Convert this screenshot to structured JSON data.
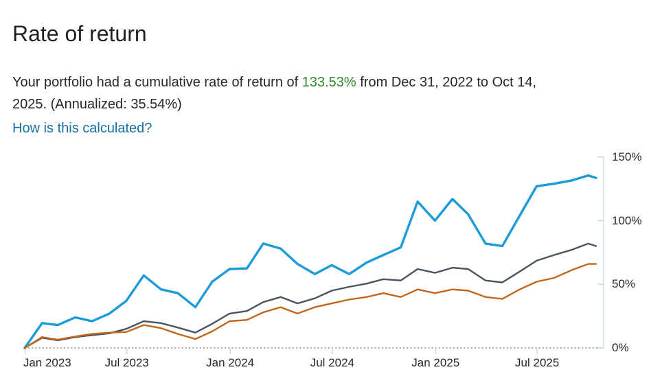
{
  "header": {
    "title": "Rate of return"
  },
  "summary": {
    "prefix": "Your portfolio had a cumulative rate of return of ",
    "return_value": "133.53%",
    "after_value_line1": " from Dec 31, 2022 to Oct 14,",
    "line2": "2025. (Annualized: 35.54%)"
  },
  "links": {
    "how_calculated": "How is this calculated?"
  },
  "colors": {
    "positive_green": "#2f8a2c",
    "link_blue": "#14709f",
    "axis_line": "#c9d6e3",
    "zero_baseline_dots": "#8d949b",
    "portfolio_blue": "#1b9bd7",
    "benchmark_gray": "#49545f",
    "benchmark_orange": "#c2661c"
  },
  "chart_data": {
    "type": "line",
    "title": "",
    "xlabel": "",
    "ylabel": "",
    "ylim": [
      0,
      150
    ],
    "y_axis_side": "right",
    "grid": false,
    "legend": "none",
    "zero_baseline_style": "dotted",
    "x_range": [
      "2022-12-31",
      "2025-10-14"
    ],
    "x_ticks": [
      {
        "label": "Jan 2023",
        "date": "2023-01-01"
      },
      {
        "label": "Jul 2023",
        "date": "2023-07-01"
      },
      {
        "label": "Jan 2024",
        "date": "2024-01-01"
      },
      {
        "label": "Jul 2024",
        "date": "2024-07-01"
      },
      {
        "label": "Jan 2025",
        "date": "2025-01-01"
      },
      {
        "label": "Jul 2025",
        "date": "2025-07-01"
      }
    ],
    "y_ticks": [
      {
        "label": "0%",
        "value": 0
      },
      {
        "label": "50%",
        "value": 50
      },
      {
        "label": "100%",
        "value": 100
      },
      {
        "label": "150%",
        "value": 150
      }
    ],
    "dates": [
      "2022-12-31",
      "2023-01-31",
      "2023-02-28",
      "2023-03-31",
      "2023-04-30",
      "2023-05-31",
      "2023-06-30",
      "2023-07-31",
      "2023-08-31",
      "2023-09-30",
      "2023-10-31",
      "2023-11-30",
      "2023-12-31",
      "2024-01-31",
      "2024-02-29",
      "2024-03-31",
      "2024-04-30",
      "2024-05-31",
      "2024-06-30",
      "2024-07-31",
      "2024-08-31",
      "2024-09-30",
      "2024-10-31",
      "2024-11-30",
      "2024-12-31",
      "2025-01-31",
      "2025-02-28",
      "2025-03-31",
      "2025-04-30",
      "2025-05-31",
      "2025-06-30",
      "2025-07-31",
      "2025-08-31",
      "2025-09-30",
      "2025-10-14"
    ],
    "series": [
      {
        "id": "portfolio-blue",
        "color": "#1b9bd7",
        "stroke_width": 3.4,
        "values": [
          0,
          19.5,
          18,
          24,
          21,
          27,
          37,
          57,
          46,
          43,
          32,
          52,
          62,
          62.5,
          82,
          78,
          66,
          58,
          65,
          58,
          67,
          73,
          79,
          115,
          100,
          117,
          105,
          82,
          80,
          104,
          127,
          129,
          131.5,
          135.5,
          133.53
        ]
      },
      {
        "id": "benchmark-gray",
        "color": "#49545f",
        "stroke_width": 2.4,
        "values": [
          0,
          8,
          6,
          8.5,
          10,
          11.5,
          15,
          21,
          19.5,
          16,
          12,
          19,
          27,
          29,
          36,
          40,
          35,
          39,
          45,
          48,
          50.5,
          54,
          53,
          62,
          59,
          63,
          62,
          53,
          51.5,
          60,
          68.5,
          73,
          77,
          82,
          80
        ]
      },
      {
        "id": "benchmark-orange",
        "color": "#c2661c",
        "stroke_width": 2.4,
        "values": [
          0,
          8.5,
          6.5,
          9,
          11,
          12,
          12.5,
          18,
          15.5,
          11,
          7,
          13,
          21,
          22,
          28,
          32,
          27,
          32,
          35,
          38,
          40,
          43,
          40,
          46,
          43,
          46,
          45,
          40,
          38.5,
          46,
          52,
          55,
          61,
          66,
          66
        ]
      }
    ]
  }
}
